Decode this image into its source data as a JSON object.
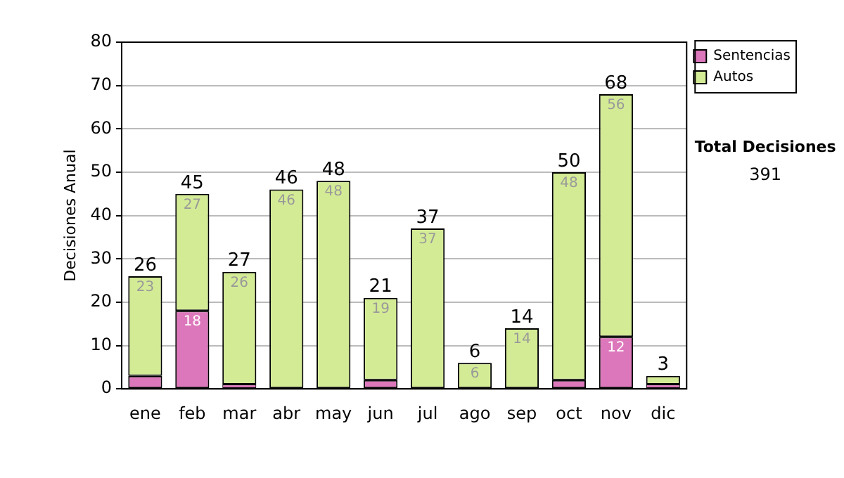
{
  "chart_data": {
    "type": "bar",
    "stacked": true,
    "ylabel": "Decisiones Anual",
    "categories": [
      "ene",
      "feb",
      "mar",
      "abr",
      "may",
      "jun",
      "jul",
      "ago",
      "sep",
      "oct",
      "nov",
      "dic"
    ],
    "series": [
      {
        "name": "Sentencias",
        "color": "#dd77bb",
        "values": [
          3,
          18,
          1,
          0,
          0,
          2,
          0,
          0,
          0,
          2,
          12,
          1
        ],
        "value_labels": [
          null,
          "18",
          null,
          null,
          null,
          null,
          null,
          null,
          null,
          null,
          "12",
          null
        ]
      },
      {
        "name": "Autos",
        "color": "#d4eb96",
        "values": [
          23,
          27,
          26,
          46,
          48,
          19,
          37,
          6,
          14,
          48,
          56,
          2
        ],
        "value_labels": [
          "23",
          "27",
          "26",
          "46",
          "48",
          "19",
          "37",
          "6",
          "14",
          "48",
          "56",
          null
        ]
      }
    ],
    "totals": [
      "26",
      "45",
      "27",
      "46",
      "48",
      "21",
      "37",
      "6",
      "14",
      "50",
      "68",
      "3"
    ],
    "ylim": [
      0,
      80
    ],
    "yticks": [
      0,
      10,
      20,
      30,
      40,
      50,
      60,
      70,
      80
    ],
    "grid": "y",
    "legend": "right",
    "annotations": [
      "Total Decisiones",
      "391"
    ]
  }
}
